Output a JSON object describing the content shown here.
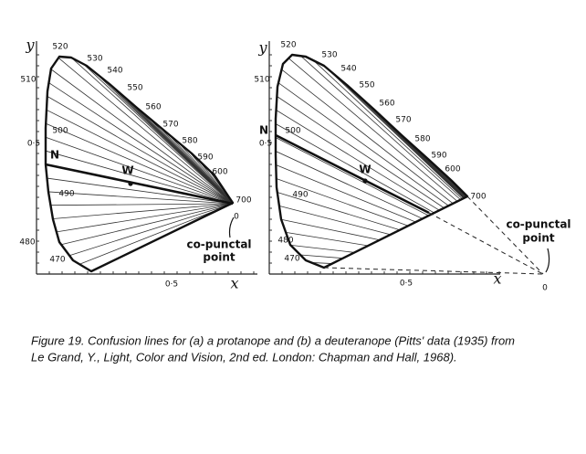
{
  "figure": {
    "panels": [
      {
        "axis_y": "y",
        "axis_x": "x",
        "y_ticks": [
          "510",
          "0·5"
        ],
        "x_tick": "0·5",
        "wavelengths": [
          "520",
          "530",
          "540",
          "550",
          "560",
          "570",
          "580",
          "590",
          "600",
          "700",
          "500",
          "490",
          "480",
          "470"
        ],
        "neutral": "N",
        "white": "W",
        "copunctal": [
          "co-punctal",
          "point"
        ],
        "origin": "0"
      },
      {
        "axis_y": "y",
        "axis_x": "x",
        "y_ticks": [
          "510",
          "0·5"
        ],
        "x_tick": "0·5",
        "wavelengths": [
          "520",
          "530",
          "540",
          "550",
          "560",
          "570",
          "580",
          "590",
          "600",
          "700",
          "500",
          "490",
          "480",
          "470"
        ],
        "neutral": "N",
        "white": "W",
        "copunctal": [
          "co-punctal",
          "point"
        ],
        "origin": "0"
      }
    ],
    "caption": [
      "Figure 19. Confusion lines for (a) a protanope and (b) a deuteranope (Pitts' data (1935) from",
      "Le Grand, Y., Light, Color and Vision, 2nd ed. London: Chapman and Hall, 1968)."
    ]
  }
}
